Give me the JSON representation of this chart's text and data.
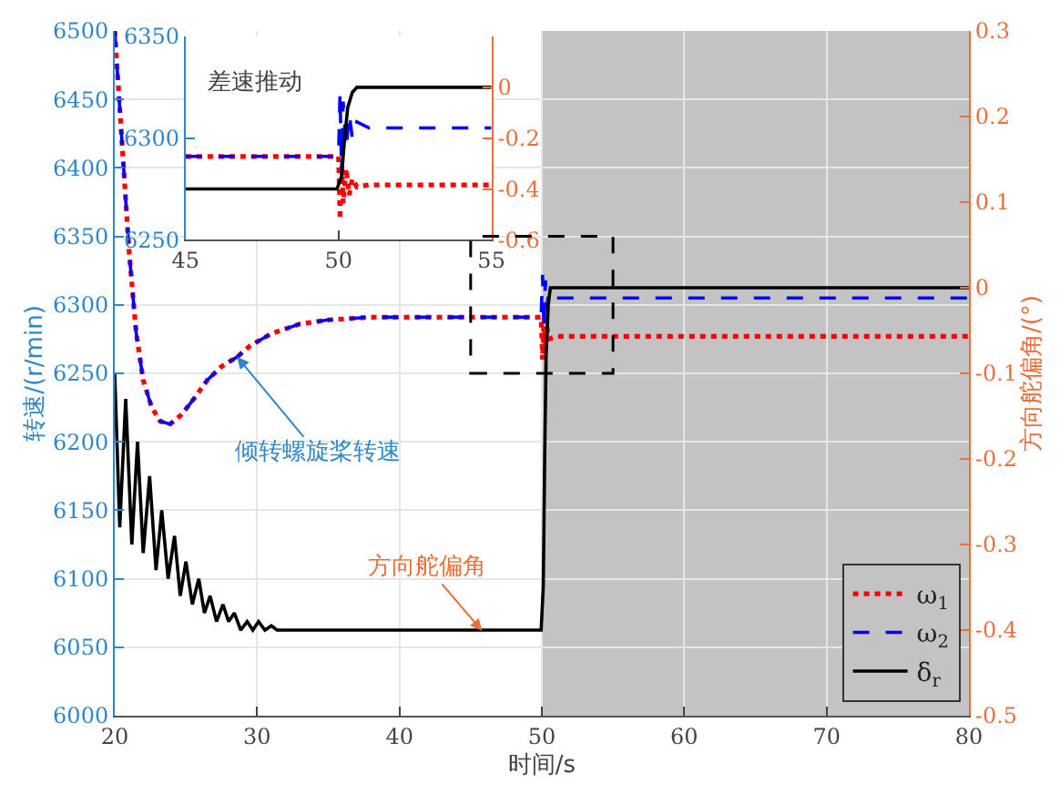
{
  "chart_data": [
    {
      "type": "line",
      "xlabel": "时间/s",
      "ylabel": "转速/(r/min)",
      "y2label": "方向舵偏角/(°)",
      "xlim": [
        20,
        80
      ],
      "xticks": [
        20,
        30,
        40,
        50,
        60,
        70,
        80
      ],
      "ylim": [
        6000,
        6500
      ],
      "yticks": [
        6000,
        6050,
        6100,
        6150,
        6200,
        6250,
        6300,
        6350,
        6400,
        6450,
        6500
      ],
      "y2lim": [
        -0.5,
        0.3
      ],
      "y2ticks": [
        -0.5,
        -0.4,
        -0.3,
        -0.2,
        -0.1,
        0,
        0.1,
        0.2,
        0.3
      ],
      "grid": true,
      "legend": "bottom right",
      "bands": [
        {
          "axis": "x",
          "from": 50,
          "to": 80,
          "color": "#c3c3c3"
        }
      ],
      "annotations": [
        {
          "text": "倾转螺旋桨转速",
          "x": 28.6,
          "y": 6262
        },
        {
          "text": "方向舵偏角",
          "x": 45.8,
          "y": 6062
        }
      ],
      "series": [
        {
          "name": "ω$_{1}$",
          "color": "#ff0000",
          "line_style": "dotted",
          "x": [
            20,
            20.5,
            21,
            21.5,
            22,
            22.6,
            23.2,
            23.9,
            24.7,
            25.6,
            26.5,
            27.5,
            28.6,
            29.5,
            31,
            33,
            35,
            38,
            49.95,
            50.05,
            50.15,
            50.25,
            50.35,
            50.5,
            51,
            80
          ],
          "values": [
            6500,
            6420,
            6340,
            6280,
            6245,
            6225,
            6215,
            6213,
            6220,
            6232,
            6245,
            6255,
            6262,
            6270,
            6279,
            6286,
            6289,
            6291,
            6291,
            6260,
            6290,
            6268,
            6284,
            6275,
            6277,
            6277
          ]
        },
        {
          "name": "ω$_{2}$",
          "color": "#0000ff",
          "line_style": "dashed",
          "x": [
            20,
            20.5,
            21,
            21.5,
            22,
            22.6,
            23.2,
            23.9,
            24.7,
            25.6,
            26.5,
            27.5,
            28.6,
            29.5,
            31,
            33,
            35,
            38,
            49.95,
            50.05,
            50.15,
            50.25,
            50.35,
            50.5,
            51,
            80
          ],
          "values": [
            6500,
            6420,
            6340,
            6280,
            6245,
            6225,
            6215,
            6213,
            6220,
            6232,
            6245,
            6255,
            6262,
            6270,
            6279,
            6286,
            6289,
            6291,
            6291,
            6322,
            6282,
            6318,
            6298,
            6310,
            6305,
            6305
          ]
        },
        {
          "name": "δ$_{r}$",
          "color": "#000000",
          "line_style": "solid",
          "axis": "y2",
          "x": [
            20,
            20.35,
            20.77,
            21.2,
            21.6,
            22.0,
            22.45,
            22.9,
            23.3,
            23.75,
            24.2,
            24.6,
            25.0,
            25.45,
            25.9,
            26.3,
            26.7,
            27.15,
            27.6,
            28.0,
            28.4,
            28.85,
            29.3,
            29.7,
            30.1,
            30.55,
            31.0,
            31.4,
            35,
            49.95,
            50.1,
            50.2,
            50.3,
            50.45,
            50.6,
            80
          ],
          "values": [
            -0.1,
            -0.28,
            -0.13,
            -0.3,
            -0.18,
            -0.31,
            -0.22,
            -0.33,
            -0.26,
            -0.34,
            -0.29,
            -0.36,
            -0.32,
            -0.37,
            -0.34,
            -0.38,
            -0.36,
            -0.39,
            -0.37,
            -0.39,
            -0.38,
            -0.4,
            -0.39,
            -0.4,
            -0.39,
            -0.4,
            -0.395,
            -0.4,
            -0.4,
            -0.4,
            -0.35,
            -0.2,
            -0.08,
            -0.02,
            0,
            0
          ]
        }
      ]
    },
    {
      "type": "line",
      "title": "差速推动",
      "xlim": [
        45,
        55
      ],
      "xticks": [
        45,
        50,
        55
      ],
      "ylim": [
        6250,
        6350
      ],
      "yticks": [
        6250,
        6300,
        6350
      ],
      "y2lim": [
        -0.6,
        0.2
      ],
      "y2ticks": [
        -0.6,
        -0.4,
        -0.2,
        0
      ],
      "series": [
        {
          "color": "#ff0000",
          "line_style": "dotted",
          "x": [
            45,
            50.0,
            50.05,
            50.1,
            50.15,
            50.25,
            50.35,
            50.45,
            50.6,
            51,
            55
          ],
          "values": [
            6291,
            6291,
            6260,
            6290,
            6268,
            6285,
            6272,
            6280,
            6276,
            6277,
            6277
          ]
        },
        {
          "color": "#0000ff",
          "line_style": "dashed",
          "x": [
            45,
            50.0,
            50.05,
            50.1,
            50.15,
            50.25,
            50.35,
            50.45,
            50.6,
            51,
            55
          ],
          "values": [
            6291,
            6291,
            6322,
            6282,
            6318,
            6295,
            6312,
            6300,
            6308,
            6305,
            6305
          ]
        },
        {
          "color": "#000000",
          "line_style": "solid",
          "axis": "y2",
          "x": [
            45,
            49.95,
            50.1,
            50.2,
            50.3,
            50.45,
            50.6,
            55
          ],
          "values": [
            -0.4,
            -0.4,
            -0.35,
            -0.2,
            -0.08,
            -0.02,
            0,
            0
          ]
        }
      ]
    }
  ]
}
